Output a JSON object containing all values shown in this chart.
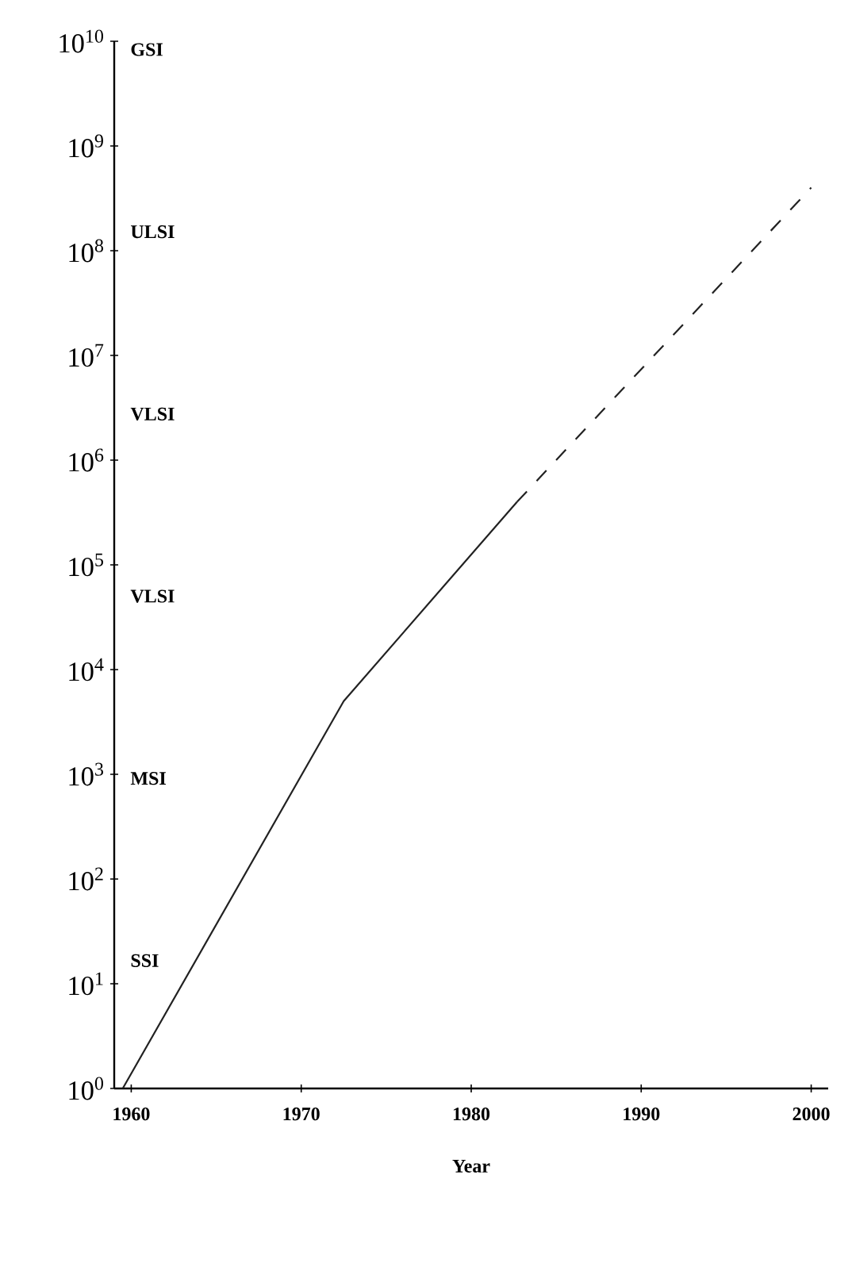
{
  "chart_data": {
    "type": "line",
    "xlabel": "Year",
    "log": "y",
    "grid": false,
    "marker": "none",
    "xlim": [
      1959,
      2001
    ],
    "xticks": [
      1960,
      1970,
      1980,
      1990,
      2000
    ],
    "ylim": [
      1,
      10000000000
    ],
    "yticks": [
      {
        "value": 1,
        "label": "10$^{0}$"
      },
      {
        "value": 10,
        "label": "10$^{1}$"
      },
      {
        "value": 100,
        "label": "10$^{2}$"
      },
      {
        "value": 1000,
        "label": "10$^{3}$"
      },
      {
        "value": 10000,
        "label": "10$^{4}$"
      },
      {
        "value": 100000,
        "label": "10$^{5}$"
      },
      {
        "value": 1000000,
        "label": "10$^{6}$"
      },
      {
        "value": 10000000,
        "label": "10$^{7}$"
      },
      {
        "value": 100000000,
        "label": "10$^{8}$"
      },
      {
        "value": 1000000000,
        "label": "10$^{9}$"
      },
      {
        "value": 10000000000,
        "label": "10$^{10}$"
      }
    ],
    "series": [
      {
        "color": "#222222",
        "line_style": "solid",
        "x": [
          1959.5,
          1972.5,
          1982.7
        ],
        "values": [
          1,
          5000,
          400000
        ]
      },
      {
        "color": "#222222",
        "line_style": "dashed",
        "x": [
          1982.7,
          2000
        ],
        "values": [
          400000,
          400000000
        ]
      }
    ],
    "annotations": [
      "GSI",
      "ULSI",
      "VLSI",
      "VLSI",
      "MSI",
      "SSI"
    ]
  }
}
